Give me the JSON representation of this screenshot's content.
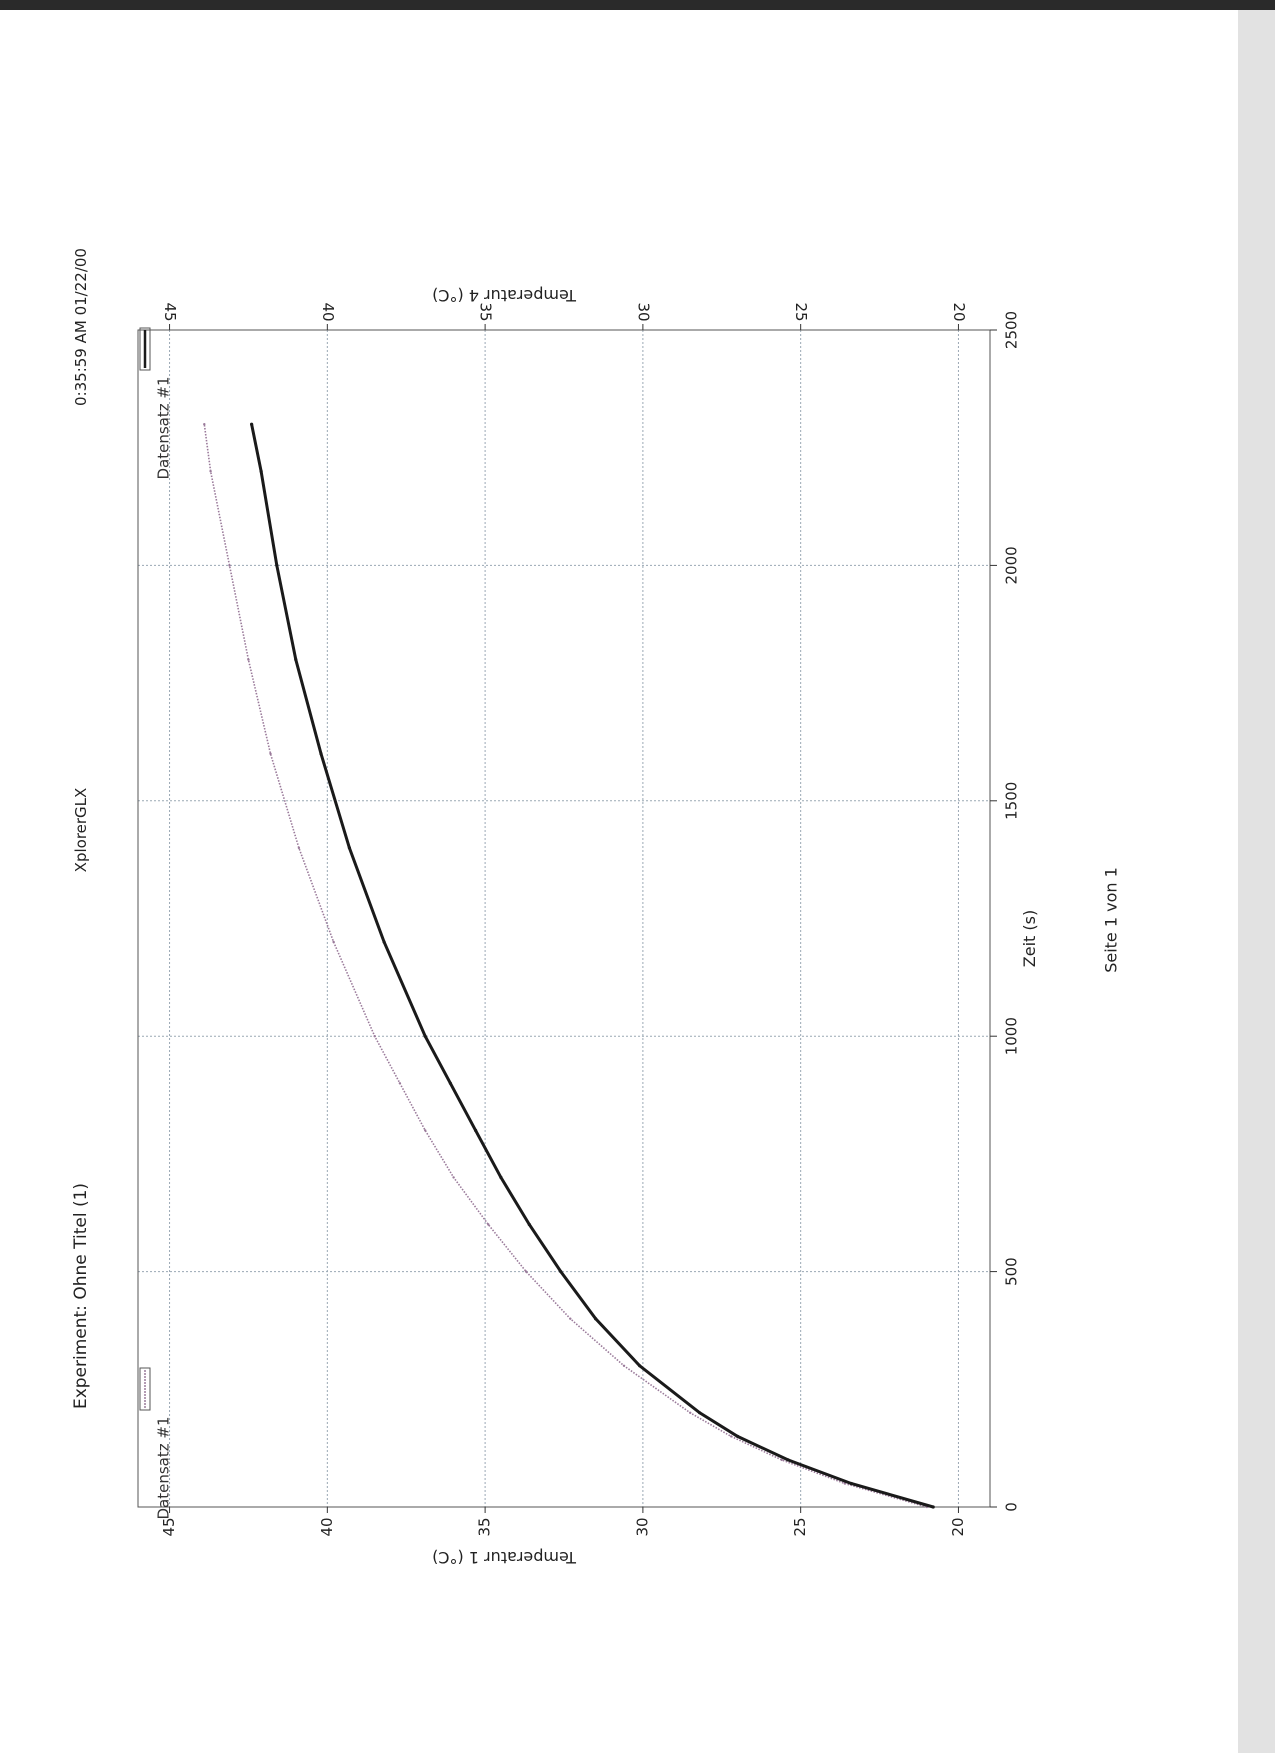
{
  "header": {
    "experiment": "Experiment: Ohne Titel (1)",
    "app": "XplorerGLX",
    "datetime": "0:35:59 AM 01/22/00"
  },
  "footer": {
    "page": "Seite 1 von 1"
  },
  "chart_data": {
    "type": "line",
    "xlabel": "Zeit (s)",
    "ylabel": "Temperatur 1 (°C)",
    "ylabel_right": "Temperatur 4 (°C)",
    "xlim": [
      0,
      2500
    ],
    "ylim": [
      19,
      46
    ],
    "ylim_right": [
      19,
      46
    ],
    "x_ticks": [
      0,
      500,
      1000,
      1500,
      2000,
      2500
    ],
    "y_ticks": [
      20,
      25,
      30,
      35,
      40,
      45
    ],
    "y_ticks_right": [
      20,
      25,
      30,
      35,
      40,
      45
    ],
    "grid": true,
    "legend": [
      {
        "name": "Datensatz #1",
        "axis": "left",
        "color": "#9a7a9a"
      },
      {
        "name": "Datensatz #1",
        "axis": "right",
        "color": "#1a1a1a"
      }
    ],
    "series": [
      {
        "name": "Datensatz #1",
        "axis": "left",
        "color": "#9a7a9a",
        "x": [
          0,
          50,
          100,
          150,
          200,
          300,
          400,
          500,
          600,
          700,
          800,
          900,
          1000,
          1200,
          1400,
          1600,
          1800,
          2000,
          2200,
          2300
        ],
        "y": [
          21.0,
          23.6,
          25.6,
          27.2,
          28.5,
          30.6,
          32.3,
          33.7,
          34.9,
          36.0,
          36.9,
          37.7,
          38.5,
          39.8,
          40.9,
          41.8,
          42.5,
          43.1,
          43.7,
          43.9
        ]
      },
      {
        "name": "Datensatz #1",
        "axis": "right",
        "color": "#1a1a1a",
        "x": [
          0,
          50,
          100,
          150,
          200,
          300,
          400,
          500,
          600,
          700,
          800,
          900,
          1000,
          1200,
          1400,
          1600,
          1800,
          2000,
          2200,
          2300
        ],
        "y": [
          20.8,
          23.4,
          25.4,
          27.0,
          28.2,
          30.1,
          31.5,
          32.6,
          33.6,
          34.5,
          35.3,
          36.1,
          36.9,
          38.2,
          39.3,
          40.2,
          41.0,
          41.6,
          42.1,
          42.4
        ]
      }
    ]
  }
}
